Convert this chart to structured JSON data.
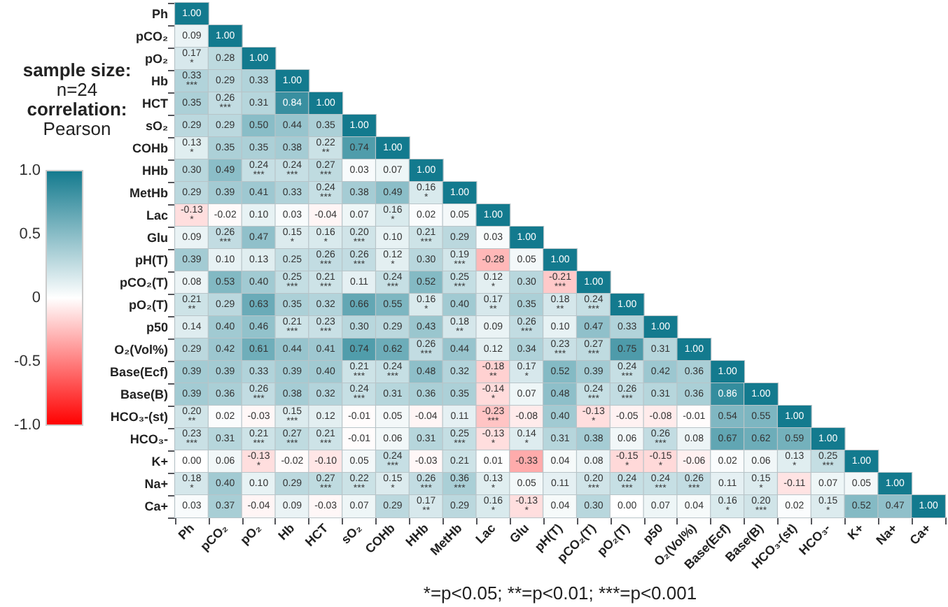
{
  "chart_data": {
    "type": "heatmap",
    "annotations": [
      "sample size:",
      "n=24",
      "correlation:",
      "Pearson",
      "*=p<0.05; **=p<0.01; ***=p<0.001"
    ],
    "categories": [
      "Ph",
      "pCO₂",
      "pO₂",
      "Hb",
      "HCT",
      "sO₂",
      "COHb",
      "HHb",
      "MetHb",
      "Lac",
      "Glu",
      "pH(T)",
      "pCO₂(T)",
      "pO₂(T)",
      "p50",
      "O₂(Vol%)",
      "Base(Ecf)",
      "Base(B)",
      "HCO₃-(st)",
      "HCO₃-",
      "K+",
      "Na+",
      "Ca+"
    ],
    "y_categories": [
      "Ph",
      "pCO₂",
      "pO₂",
      "Hb",
      "HCT",
      "sO₂",
      "COHb",
      "HHb",
      "MetHb",
      "Lac",
      "Glu",
      "pH(T)",
      "pCO₂(T)",
      "pO₂(T)",
      "p50",
      "O₂(Vol%)",
      "Base(Ecf)",
      "Base(B)",
      "HCO₃-(st)",
      "HCO₃-",
      "K+",
      "Na+",
      "Ca+"
    ],
    "cells": [
      [
        1.0,
        null,
        null,
        null,
        null,
        null,
        null,
        null,
        null,
        null,
        null,
        null,
        null,
        null,
        null,
        null,
        null,
        null,
        null,
        null,
        null,
        null,
        null
      ],
      [
        0.09,
        1.0,
        null,
        null,
        null,
        null,
        null,
        null,
        null,
        null,
        null,
        null,
        null,
        null,
        null,
        null,
        null,
        null,
        null,
        null,
        null,
        null,
        null
      ],
      [
        0.17,
        0.28,
        1.0,
        null,
        null,
        null,
        null,
        null,
        null,
        null,
        null,
        null,
        null,
        null,
        null,
        null,
        null,
        null,
        null,
        null,
        null,
        null,
        null
      ],
      [
        0.33,
        0.29,
        0.33,
        1.0,
        null,
        null,
        null,
        null,
        null,
        null,
        null,
        null,
        null,
        null,
        null,
        null,
        null,
        null,
        null,
        null,
        null,
        null,
        null
      ],
      [
        0.35,
        0.26,
        0.31,
        0.84,
        1.0,
        null,
        null,
        null,
        null,
        null,
        null,
        null,
        null,
        null,
        null,
        null,
        null,
        null,
        null,
        null,
        null,
        null,
        null
      ],
      [
        0.29,
        0.29,
        0.5,
        0.44,
        0.35,
        1.0,
        null,
        null,
        null,
        null,
        null,
        null,
        null,
        null,
        null,
        null,
        null,
        null,
        null,
        null,
        null,
        null,
        null
      ],
      [
        0.13,
        0.35,
        0.35,
        0.38,
        0.22,
        0.74,
        1.0,
        null,
        null,
        null,
        null,
        null,
        null,
        null,
        null,
        null,
        null,
        null,
        null,
        null,
        null,
        null,
        null
      ],
      [
        0.3,
        0.49,
        0.24,
        0.24,
        0.27,
        0.03,
        0.07,
        1.0,
        null,
        null,
        null,
        null,
        null,
        null,
        null,
        null,
        null,
        null,
        null,
        null,
        null,
        null,
        null
      ],
      [
        0.29,
        0.39,
        0.41,
        0.33,
        0.24,
        0.38,
        0.49,
        0.16,
        1.0,
        null,
        null,
        null,
        null,
        null,
        null,
        null,
        null,
        null,
        null,
        null,
        null,
        null,
        null
      ],
      [
        -0.13,
        -0.02,
        0.1,
        0.03,
        -0.04,
        0.07,
        0.16,
        0.02,
        0.05,
        1.0,
        null,
        null,
        null,
        null,
        null,
        null,
        null,
        null,
        null,
        null,
        null,
        null,
        null
      ],
      [
        0.09,
        0.26,
        0.47,
        0.15,
        0.16,
        0.2,
        0.1,
        0.21,
        0.29,
        0.03,
        1.0,
        null,
        null,
        null,
        null,
        null,
        null,
        null,
        null,
        null,
        null,
        null,
        null
      ],
      [
        0.39,
        0.1,
        0.13,
        0.25,
        0.26,
        0.26,
        0.12,
        0.3,
        0.19,
        -0.28,
        0.05,
        1.0,
        null,
        null,
        null,
        null,
        null,
        null,
        null,
        null,
        null,
        null,
        null
      ],
      [
        0.08,
        0.53,
        0.4,
        0.25,
        0.21,
        0.11,
        0.24,
        0.52,
        0.25,
        0.12,
        0.3,
        -0.21,
        1.0,
        null,
        null,
        null,
        null,
        null,
        null,
        null,
        null,
        null,
        null
      ],
      [
        0.21,
        0.29,
        0.63,
        0.35,
        0.32,
        0.66,
        0.55,
        0.16,
        0.4,
        0.17,
        0.35,
        0.18,
        0.24,
        1.0,
        null,
        null,
        null,
        null,
        null,
        null,
        null,
        null,
        null
      ],
      [
        0.14,
        0.4,
        0.46,
        0.21,
        0.23,
        0.3,
        0.29,
        0.43,
        0.18,
        0.09,
        0.26,
        0.1,
        0.47,
        0.33,
        1.0,
        null,
        null,
        null,
        null,
        null,
        null,
        null,
        null
      ],
      [
        0.29,
        0.42,
        0.61,
        0.44,
        0.41,
        0.74,
        0.62,
        0.26,
        0.44,
        0.12,
        0.34,
        0.23,
        0.27,
        0.75,
        0.31,
        1.0,
        null,
        null,
        null,
        null,
        null,
        null,
        null
      ],
      [
        0.39,
        0.39,
        0.33,
        0.39,
        0.4,
        0.21,
        0.24,
        0.48,
        0.32,
        -0.18,
        0.17,
        0.52,
        0.39,
        0.24,
        0.42,
        0.36,
        1.0,
        null,
        null,
        null,
        null,
        null,
        null
      ],
      [
        0.39,
        0.36,
        0.26,
        0.38,
        0.32,
        0.24,
        0.31,
        0.36,
        0.35,
        -0.14,
        0.07,
        0.48,
        0.24,
        0.26,
        0.31,
        0.36,
        0.86,
        1.0,
        null,
        null,
        null,
        null,
        null
      ],
      [
        0.2,
        0.02,
        -0.03,
        0.15,
        0.12,
        -0.01,
        0.05,
        -0.04,
        0.11,
        -0.23,
        -0.08,
        0.4,
        -0.13,
        -0.05,
        -0.08,
        -0.01,
        0.54,
        0.55,
        1.0,
        null,
        null,
        null,
        null
      ],
      [
        0.23,
        0.31,
        0.21,
        0.27,
        0.21,
        -0.01,
        0.06,
        0.31,
        0.25,
        -0.13,
        0.14,
        0.31,
        0.38,
        0.06,
        0.26,
        0.08,
        0.67,
        0.62,
        0.59,
        1.0,
        null,
        null,
        null
      ],
      [
        0.0,
        0.06,
        -0.13,
        -0.02,
        -0.1,
        0.05,
        0.24,
        -0.03,
        0.21,
        0.01,
        -0.33,
        0.04,
        0.08,
        -0.15,
        -0.15,
        -0.06,
        0.02,
        0.06,
        0.13,
        0.25,
        1.0,
        null,
        null
      ],
      [
        0.18,
        0.4,
        0.1,
        0.29,
        0.27,
        0.22,
        0.15,
        0.26,
        0.36,
        0.13,
        0.05,
        0.11,
        0.2,
        0.24,
        0.24,
        0.26,
        0.11,
        0.15,
        -0.11,
        0.07,
        0.05,
        1.0,
        null
      ],
      [
        0.03,
        0.37,
        -0.04,
        0.09,
        -0.03,
        0.07,
        0.29,
        0.17,
        0.29,
        0.16,
        -0.13,
        0.04,
        0.3,
        0.0,
        0.07,
        0.04,
        0.16,
        0.2,
        0.02,
        0.15,
        0.52,
        0.47,
        1.0
      ]
    ],
    "cell_labels": [
      [
        "1.00",
        null,
        null,
        null,
        null,
        null,
        null,
        null,
        null,
        null,
        null,
        null,
        null,
        null,
        null,
        null,
        null,
        null,
        null,
        null,
        null,
        null,
        null
      ],
      [
        "0.09",
        "1.00",
        null,
        null,
        null,
        null,
        null,
        null,
        null,
        null,
        null,
        null,
        null,
        null,
        null,
        null,
        null,
        null,
        null,
        null,
        null,
        null,
        null
      ],
      [
        "0.17\n*",
        "0.28",
        "1.00",
        null,
        null,
        null,
        null,
        null,
        null,
        null,
        null,
        null,
        null,
        null,
        null,
        null,
        null,
        null,
        null,
        null,
        null,
        null,
        null
      ],
      [
        "0.33\n***",
        "0.29",
        "0.33",
        "1.00",
        null,
        null,
        null,
        null,
        null,
        null,
        null,
        null,
        null,
        null,
        null,
        null,
        null,
        null,
        null,
        null,
        null,
        null,
        null
      ],
      [
        "0.35",
        "0.26\n***",
        "0.31",
        "0.84",
        "1.00",
        null,
        null,
        null,
        null,
        null,
        null,
        null,
        null,
        null,
        null,
        null,
        null,
        null,
        null,
        null,
        null,
        null,
        null
      ],
      [
        "0.29",
        "0.29",
        "0.50",
        "0.44",
        "0.35",
        "1.00",
        null,
        null,
        null,
        null,
        null,
        null,
        null,
        null,
        null,
        null,
        null,
        null,
        null,
        null,
        null,
        null,
        null
      ],
      [
        "0.13\n*",
        "0.35",
        "0.35",
        "0.38",
        "0.22\n**",
        "0.74",
        "1.00",
        null,
        null,
        null,
        null,
        null,
        null,
        null,
        null,
        null,
        null,
        null,
        null,
        null,
        null,
        null,
        null
      ],
      [
        "0.30",
        "0.49",
        "0.24\n***",
        "0.24\n***",
        "0.27\n***",
        "0.03",
        "0.07",
        "1.00",
        null,
        null,
        null,
        null,
        null,
        null,
        null,
        null,
        null,
        null,
        null,
        null,
        null,
        null,
        null
      ],
      [
        "0.29",
        "0.39",
        "0.41",
        "0.33",
        "0.24\n***",
        "0.38",
        "0.49",
        "0.16\n*",
        "1.00",
        null,
        null,
        null,
        null,
        null,
        null,
        null,
        null,
        null,
        null,
        null,
        null,
        null,
        null
      ],
      [
        "-0.13\n*",
        "-0.02",
        "0.10",
        "0.03",
        "-0.04",
        "0.07",
        "0.16\n*",
        "0.02",
        "0.05",
        "1.00",
        null,
        null,
        null,
        null,
        null,
        null,
        null,
        null,
        null,
        null,
        null,
        null,
        null
      ],
      [
        "0.09",
        "0.26\n***",
        "0.47",
        "0.15\n*",
        "0.16\n*",
        "0.20\n***",
        "0.10",
        "0.21\n***",
        "0.29",
        "0.03",
        "1.00",
        null,
        null,
        null,
        null,
        null,
        null,
        null,
        null,
        null,
        null,
        null,
        null
      ],
      [
        "0.39",
        "0.10",
        "0.13",
        "0.25",
        "0.26\n***",
        "0.26\n***",
        "0.12\n*",
        "0.30",
        "0.19\n***",
        "-0.28",
        "0.05",
        "1.00",
        null,
        null,
        null,
        null,
        null,
        null,
        null,
        null,
        null,
        null,
        null
      ],
      [
        "0.08",
        "0.53",
        "0.40",
        "0.25\n***",
        "0.21\n***",
        "0.11",
        "0.24\n***",
        "0.52",
        "0.25\n***",
        "0.12\n*",
        "0.30",
        "-0.21\n***",
        "1.00",
        null,
        null,
        null,
        null,
        null,
        null,
        null,
        null,
        null,
        null
      ],
      [
        "0.21\n**",
        "0.29",
        "0.63",
        "0.35",
        "0.32",
        "0.66",
        "0.55",
        "0.16\n*",
        "0.40",
        "0.17\n**",
        "0.35",
        "0.18\n**",
        "0.24\n***",
        "1.00",
        null,
        null,
        null,
        null,
        null,
        null,
        null,
        null,
        null
      ],
      [
        "0.14",
        "0.40",
        "0.46",
        "0.21\n***",
        "0.23\n***",
        "0.30",
        "0.29",
        "0.43",
        "0.18\n**",
        "0.09",
        "0.26\n***",
        "0.10",
        "0.47",
        "0.33",
        "1.00",
        null,
        null,
        null,
        null,
        null,
        null,
        null,
        null
      ],
      [
        "0.29",
        "0.42",
        "0.61",
        "0.44",
        "0.41",
        "0.74",
        "0.62",
        "0.26\n***",
        "0.44",
        "0.12",
        "0.34",
        "0.23\n***",
        "0.27\n***",
        "0.75",
        "0.31",
        "1.00",
        null,
        null,
        null,
        null,
        null,
        null,
        null
      ],
      [
        "0.39",
        "0.39",
        "0.33",
        "0.39",
        "0.40",
        "0.21\n***",
        "0.24\n***",
        "0.48",
        "0.32",
        "-0.18\n**",
        "0.17\n*",
        "0.52",
        "0.39",
        "0.24\n***",
        "0.42",
        "0.36",
        "1.00",
        null,
        null,
        null,
        null,
        null,
        null
      ],
      [
        "0.39",
        "0.36",
        "0.26\n***",
        "0.38",
        "0.32",
        "0.24\n***",
        "0.31",
        "0.36",
        "0.35",
        "-0.14\n*",
        "0.07",
        "0.48",
        "0.24\n***",
        "0.26\n***",
        "0.31",
        "0.36",
        "0.86",
        "1.00",
        null,
        null,
        null,
        null,
        null
      ],
      [
        "0.20\n**",
        "0.02",
        "-0.03",
        "0.15\n***",
        "0.12",
        "-0.01",
        "0.05",
        "-0.04",
        "0.11",
        "-0.23\n***",
        "-0.08",
        "0.40",
        "-0.13\n*",
        "-0.05",
        "-0.08",
        "-0.01",
        "0.54",
        "0.55",
        "1.00",
        null,
        null,
        null,
        null
      ],
      [
        "0.23\n***",
        "0.31",
        "0.21\n***",
        "0.27\n***",
        "0.21\n***",
        "-0.01",
        "0.06",
        "0.31",
        "0.25\n***",
        "-0.13\n*",
        "0.14\n*",
        "0.31",
        "0.38",
        "0.06",
        "0.26\n***",
        "0.08",
        "0.67",
        "0.62",
        "0.59",
        "1.00",
        null,
        null,
        null
      ],
      [
        "0.00",
        "0.06",
        "-0.13\n*",
        "-0.02",
        "-0.10",
        "0.05",
        "0.24\n***",
        "-0.03",
        "0.21",
        "0.01",
        "-0.33",
        "0.04",
        "0.08",
        "-0.15\n*",
        "-0.15\n*",
        "-0.06",
        "0.02",
        "0.06",
        "0.13\n*",
        "0.25\n***",
        "1.00",
        null,
        null
      ],
      [
        "0.18\n*",
        "0.40",
        "0.10",
        "0.29",
        "0.27\n***",
        "0.22\n***",
        "0.15\n*",
        "0.26\n***",
        "0.36\n***",
        "0.13\n*",
        "0.05",
        "0.11",
        "0.20\n***",
        "0.24\n***",
        "0.24\n***",
        "0.26\n***",
        "0.11",
        "0.15\n*",
        "-0.11",
        "0.07",
        "0.05",
        "1.00",
        null
      ],
      [
        "0.03",
        "0.37",
        "-0.04",
        "0.09",
        "-0.03",
        "0.07",
        "0.29",
        "0.17\n**",
        "0.29",
        "0.16\n*",
        "-0.13\n*",
        "0.04",
        "0.30",
        "0.00",
        "0.07",
        "0.04",
        "0.16\n*",
        "0.20\n***",
        "0.02",
        "0.15\n*",
        "0.52",
        "0.47",
        "1.00"
      ]
    ],
    "clim": [
      -1,
      1
    ],
    "cticks": [
      {
        "value": 1,
        "label": "1.0"
      },
      {
        "value": 0.5,
        "label": "0.5"
      },
      {
        "value": 0,
        "label": "0"
      },
      {
        "value": -0.5,
        "label": "-0.5"
      },
      {
        "value": -1,
        "label": "-1.0"
      }
    ]
  }
}
